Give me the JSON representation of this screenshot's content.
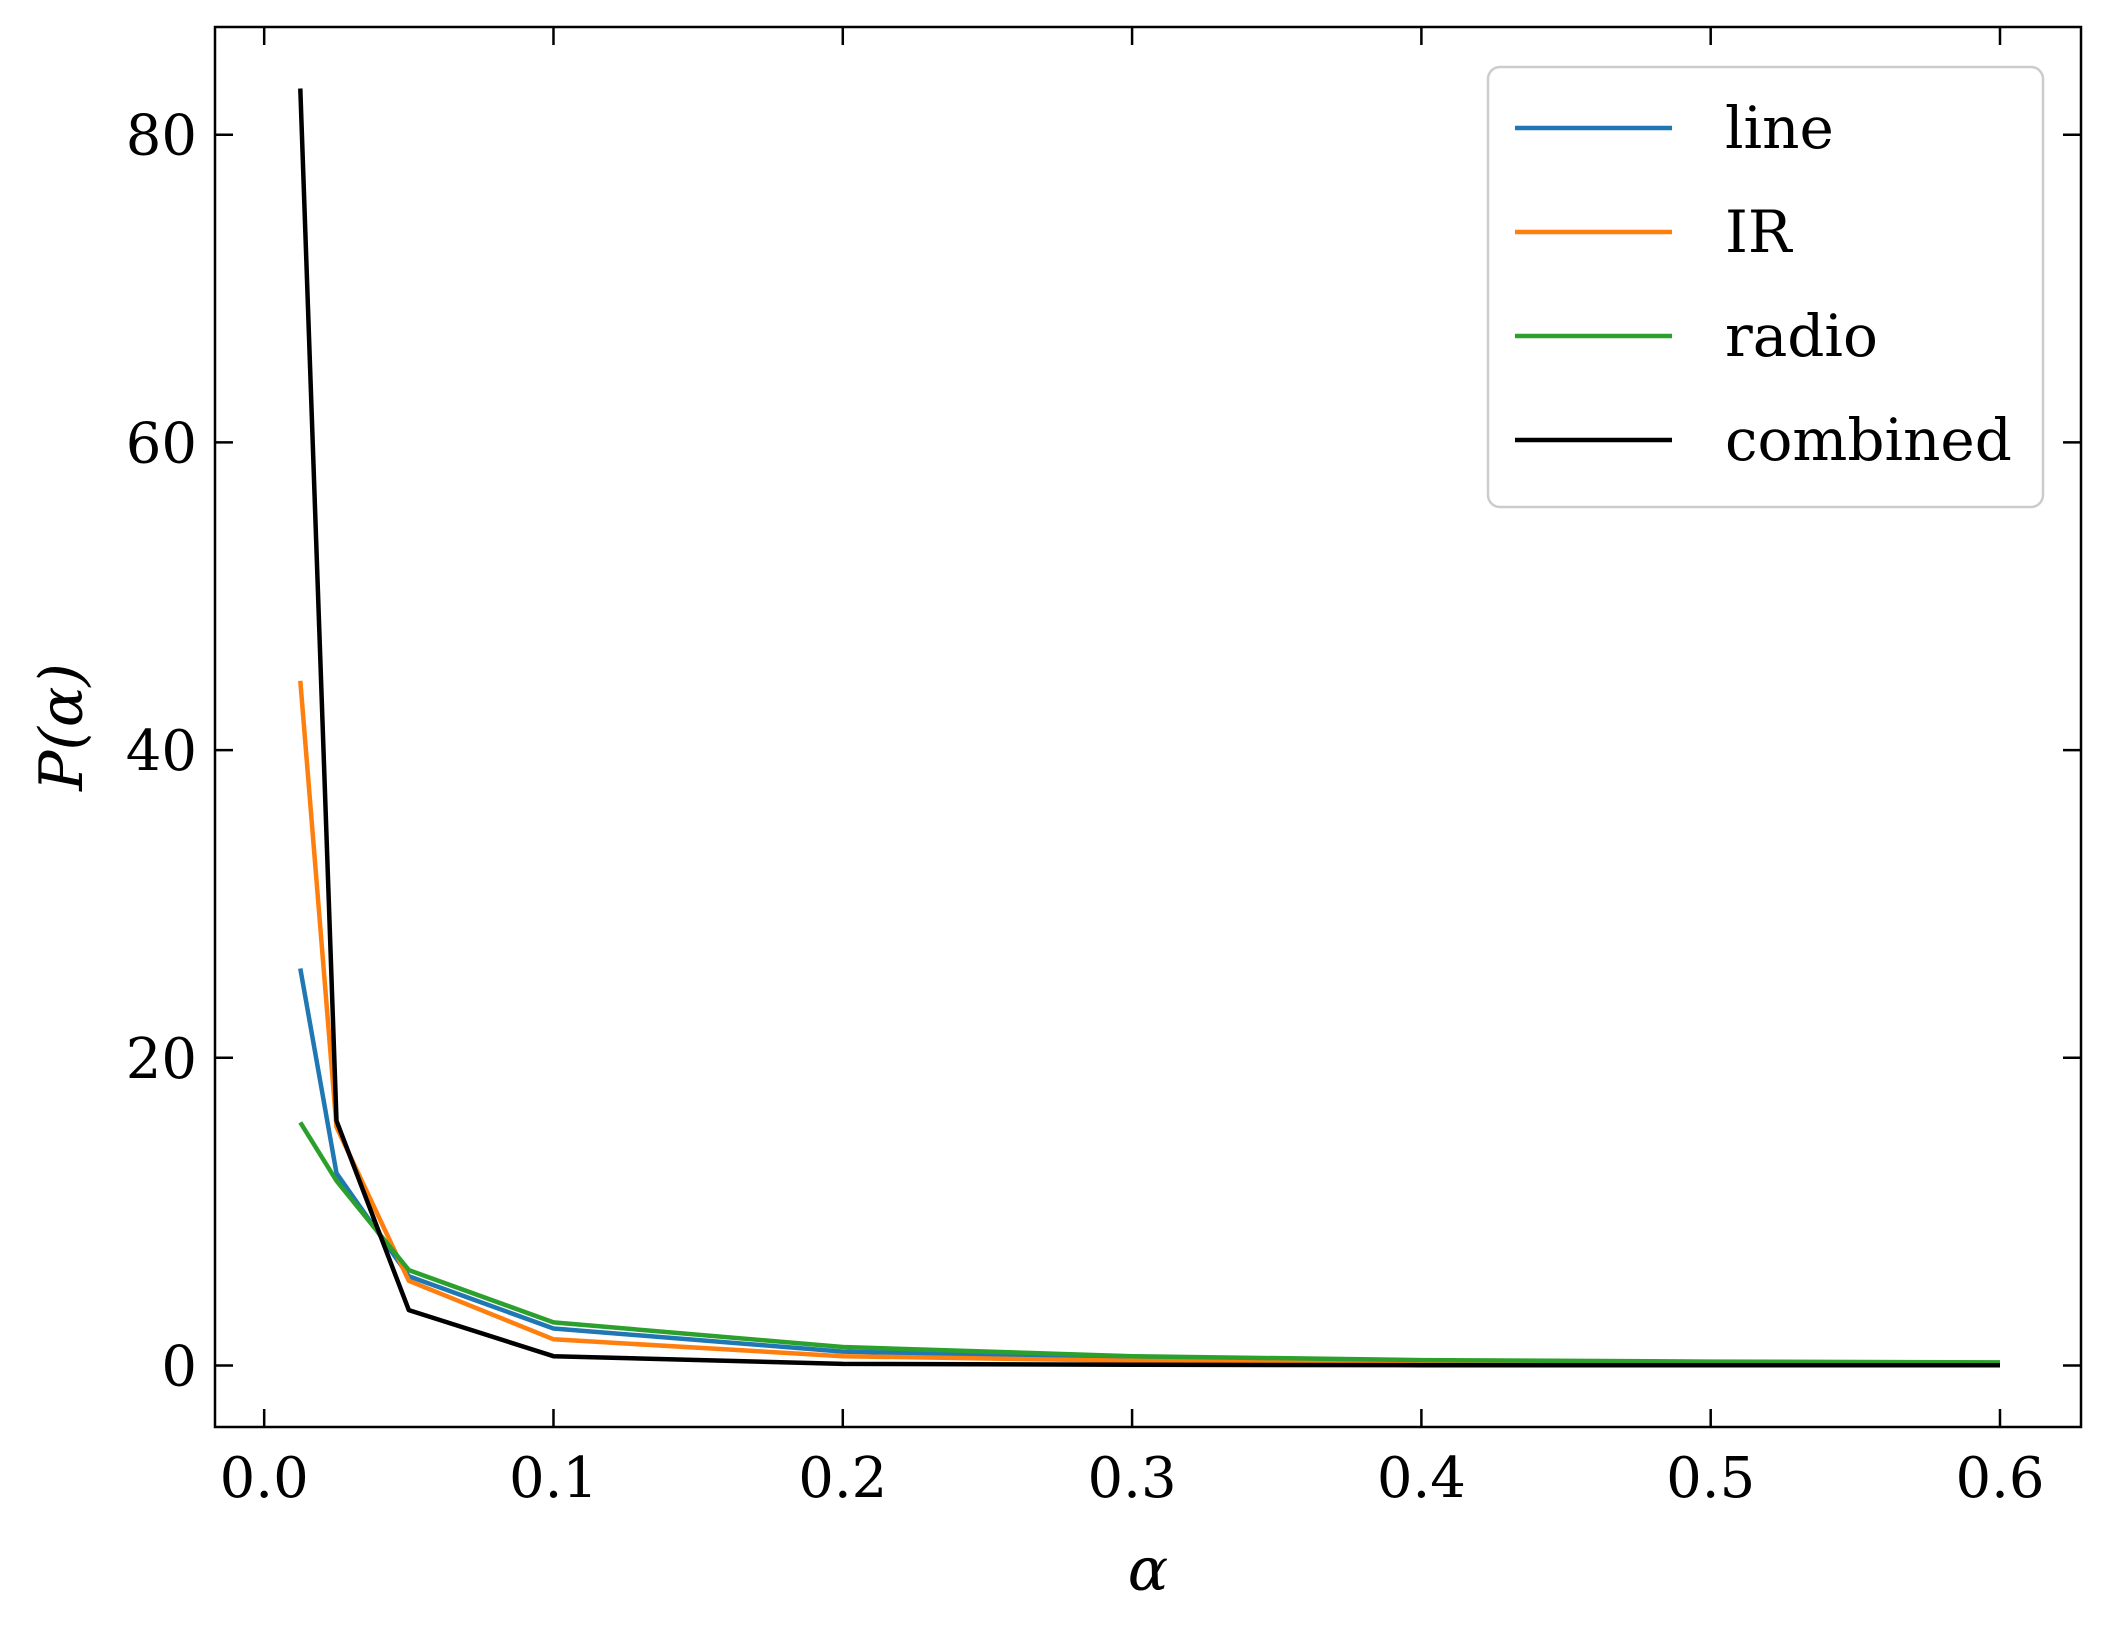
{
  "chart_data": {
    "type": "line",
    "title": "",
    "xlabel": "α",
    "ylabel": "P(α)",
    "xlim": [
      -0.017,
      0.628
    ],
    "ylim": [
      -4,
      87
    ],
    "xticks": [
      0.0,
      0.1,
      0.2,
      0.3,
      0.4,
      0.5,
      0.6
    ],
    "xtick_labels": [
      "0.0",
      "0.1",
      "0.2",
      "0.3",
      "0.4",
      "0.5",
      "0.6"
    ],
    "yticks": [
      0,
      20,
      40,
      60,
      80
    ],
    "ytick_labels": [
      "0",
      "20",
      "40",
      "60",
      "80"
    ],
    "grid": false,
    "legend_position": "top-right",
    "series": [
      {
        "name": "line",
        "color": "#1f77b4",
        "x": [
          0.0125,
          0.025,
          0.05,
          0.1,
          0.2,
          0.3,
          0.4,
          0.5,
          0.6
        ],
        "y": [
          25.8,
          12.5,
          5.8,
          2.4,
          0.9,
          0.5,
          0.3,
          0.2,
          0.15
        ]
      },
      {
        "name": "IR",
        "color": "#ff7f0e",
        "x": [
          0.0125,
          0.025,
          0.05,
          0.1,
          0.2,
          0.3,
          0.4,
          0.5,
          0.6
        ],
        "y": [
          44.5,
          15.5,
          5.5,
          1.7,
          0.6,
          0.3,
          0.2,
          0.15,
          0.1
        ]
      },
      {
        "name": "radio",
        "color": "#2ca02c",
        "x": [
          0.0125,
          0.025,
          0.05,
          0.1,
          0.2,
          0.3,
          0.4,
          0.5,
          0.6
        ],
        "y": [
          15.8,
          12.0,
          6.2,
          2.8,
          1.2,
          0.6,
          0.35,
          0.25,
          0.2
        ]
      },
      {
        "name": "combined",
        "color": "#000000",
        "x": [
          0.0125,
          0.025,
          0.05,
          0.1,
          0.2,
          0.3,
          0.4,
          0.5,
          0.6
        ],
        "y": [
          83.0,
          15.9,
          3.6,
          0.6,
          0.1,
          0.05,
          0.02,
          0.01,
          0.01
        ]
      }
    ]
  }
}
